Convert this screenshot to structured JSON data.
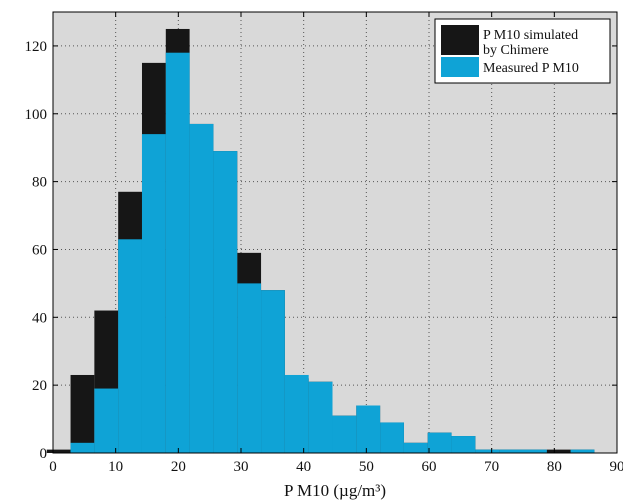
{
  "chart_data": {
    "type": "bar",
    "bin_width": 3.8,
    "bins_start": [
      -1,
      2.8,
      6.6,
      10.4,
      14.2,
      18,
      21.8,
      25.6,
      29.4,
      33.2,
      37,
      40.8,
      44.6,
      48.4,
      52.2,
      56,
      59.8,
      63.6,
      67.4,
      71.2,
      75,
      78.8,
      82.6
    ],
    "series": [
      {
        "name": "P M10 simulated by Chimere",
        "color": "#161616",
        "values": [
          1,
          23,
          42,
          77,
          115,
          125,
          97,
          89,
          59,
          48,
          22,
          21,
          11,
          14,
          9,
          3,
          6,
          5,
          1,
          1,
          1,
          1,
          1
        ]
      },
      {
        "name": "Measured P M10",
        "color": "#0fa3d6",
        "values": [
          0,
          3,
          19,
          63,
          94,
          118,
          97,
          89,
          50,
          48,
          23,
          21,
          11,
          14,
          9,
          3,
          6,
          5,
          1,
          1,
          1,
          0,
          1
        ]
      }
    ],
    "xlim": [
      0,
      90
    ],
    "ylim": [
      0,
      130
    ],
    "xticks": [
      "0",
      "10",
      "20",
      "30",
      "40",
      "50",
      "60",
      "70",
      "80",
      "90"
    ],
    "yticks": [
      "0",
      "20",
      "40",
      "60",
      "80",
      "100",
      "120"
    ],
    "xlabel": "P M10 (µg/m³)",
    "ylabel": "",
    "grid": true,
    "legend": {
      "position": "top-right",
      "entries": [
        "P M10 simulated\nby Chimere",
        "Measured P M10"
      ]
    },
    "background_color": "#d9d9d9"
  }
}
